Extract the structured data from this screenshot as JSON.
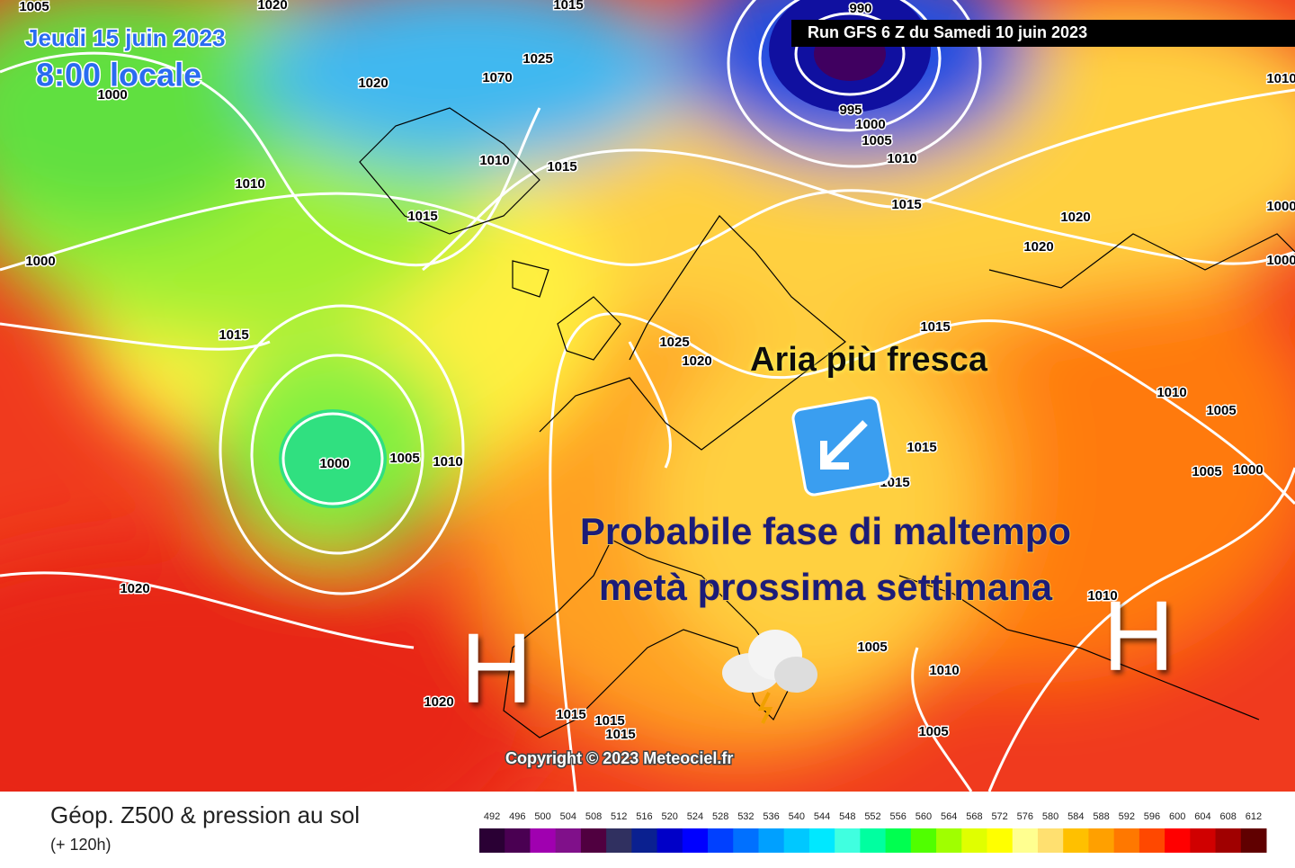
{
  "header": {
    "date": "Jeudi 15 juin 2023",
    "time": "8:00 locale",
    "run": "Run GFS 6 Z du Samedi 10 juin 2023"
  },
  "annotations": {
    "cool_air": "Aria più fresca",
    "forecast_line1": "Probabile fase di maltempo",
    "forecast_line2": "metà prossima settimana",
    "high_left": "H",
    "high_right": "H"
  },
  "copyright": "Copyright © 2023 Meteociel.fr",
  "isobar_labels": [
    "1005",
    "1020",
    "1015",
    "990",
    "1000",
    "1020",
    "1025",
    "1070",
    "1010",
    "1015",
    "1010",
    "1015",
    "1000",
    "995",
    "1000",
    "1005",
    "1010",
    "1015",
    "1020",
    "1020",
    "1015",
    "1025",
    "1020",
    "1015",
    "1010",
    "1005",
    "1015",
    "1015",
    "1000",
    "1005",
    "1010",
    "1005",
    "1000",
    "1020",
    "1010",
    "1005",
    "1010",
    "1020",
    "1015",
    "1015",
    "1015",
    "1005",
    "1010",
    "1000",
    "1000"
  ],
  "footer": {
    "title": "Géop. Z500 & pression au sol",
    "subtitle": "(+ 120h)"
  },
  "scale": {
    "values": [
      492,
      496,
      500,
      504,
      508,
      512,
      516,
      520,
      524,
      528,
      532,
      536,
      540,
      544,
      548,
      552,
      556,
      560,
      564,
      568,
      572,
      576,
      580,
      584,
      588,
      592,
      596,
      600,
      604,
      608,
      612
    ],
    "colors": [
      "#2a0034",
      "#4a0052",
      "#a000b0",
      "#80108a",
      "#500040",
      "#303060",
      "#0a2090",
      "#0000c8",
      "#0000ff",
      "#0040ff",
      "#0070ff",
      "#00a0ff",
      "#00c8ff",
      "#00e8ff",
      "#40ffe0",
      "#00ffa0",
      "#00ff50",
      "#50ff00",
      "#a0ff00",
      "#e0ff00",
      "#ffff00",
      "#ffff90",
      "#ffe070",
      "#ffc000",
      "#ffa000",
      "#ff7800",
      "#ff4800",
      "#ff0000",
      "#d00000",
      "#a00000",
      "#600000"
    ]
  }
}
